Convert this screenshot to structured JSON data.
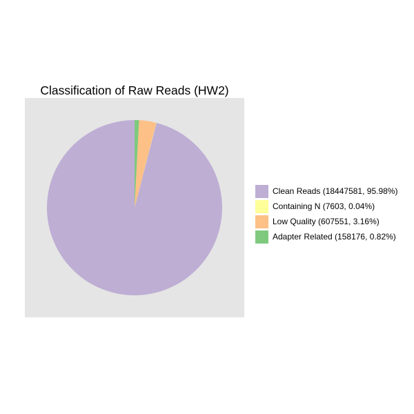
{
  "chart_data": {
    "type": "pie",
    "title": "Classification of Raw Reads (HW2)",
    "grid": false,
    "legend_placement": "right",
    "start_angle": "12 o'clock, clockwise",
    "slices": [
      {
        "label": "Clean Reads",
        "value": 18447581,
        "percent": 95.98,
        "color": "#beaed4",
        "legend_text": "Clean Reads (18447581, 95.98%)"
      },
      {
        "label": "Containing N",
        "value": 7603,
        "percent": 0.04,
        "color": "#ffff99",
        "legend_text": "Containing N (7603, 0.04%)"
      },
      {
        "label": "Low Quality",
        "value": 607551,
        "percent": 3.16,
        "color": "#fdc086",
        "legend_text": "Low Quality (607551, 3.16%)"
      },
      {
        "label": "Adapter Related",
        "value": 158176,
        "percent": 0.82,
        "color": "#7fc97f",
        "legend_text": "Adapter Related (158176, 0.82%)"
      }
    ]
  }
}
